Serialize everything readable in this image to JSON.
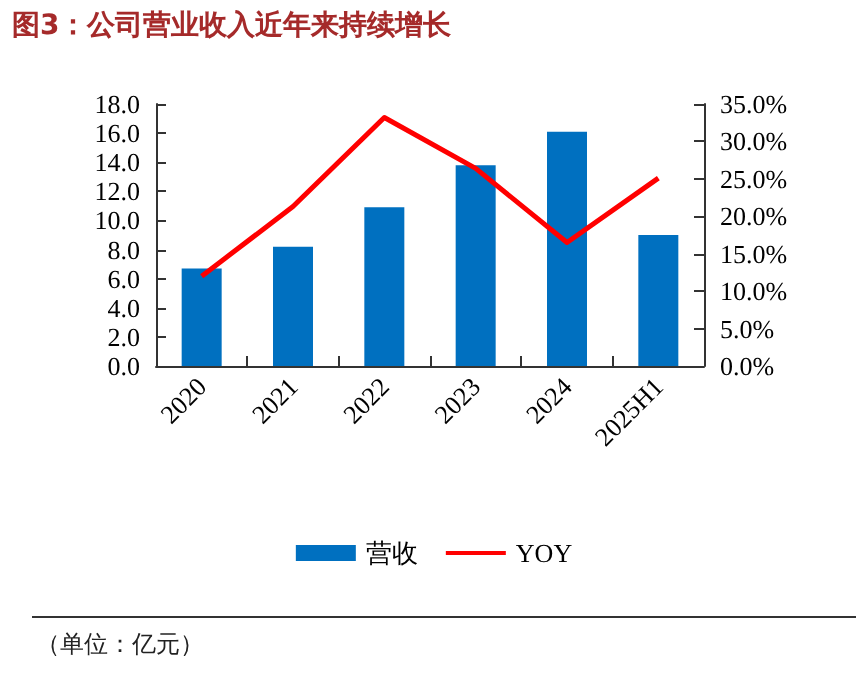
{
  "chart_data": {
    "type": "bar",
    "title": "图3：公司营业收入近年来持续增长",
    "categories": [
      "2020",
      "2021",
      "2022",
      "2023",
      "2024",
      "2025H1"
    ],
    "series": [
      {
        "name": "营收",
        "color": "#0070c0",
        "values": [
          6.7,
          8.2,
          10.9,
          13.8,
          16.1,
          9.0
        ]
      },
      {
        "name": "YOY",
        "type": "line",
        "axis": "y2",
        "color": "#ff0000",
        "values": [
          12.0,
          21.3,
          33.2,
          26.4,
          16.5,
          25.1
        ]
      }
    ],
    "ylim": [
      0,
      18
    ],
    "yticks": [
      {
        "value": 0,
        "label": "0.0"
      },
      {
        "value": 2,
        "label": "2.0"
      },
      {
        "value": 4,
        "label": "4.0"
      },
      {
        "value": 6,
        "label": "6.0"
      },
      {
        "value": 8,
        "label": "8.0"
      },
      {
        "value": 10,
        "label": "10.0"
      },
      {
        "value": 12,
        "label": "12.0"
      },
      {
        "value": 14,
        "label": "14.0"
      },
      {
        "value": 16,
        "label": "16.0"
      },
      {
        "value": 18,
        "label": "18.0"
      }
    ],
    "y2lim": [
      0,
      35
    ],
    "y2ticks": [
      {
        "value": 0,
        "label": "0.0%"
      },
      {
        "value": 5,
        "label": "5.0%"
      },
      {
        "value": 10,
        "label": "10.0%"
      },
      {
        "value": 15,
        "label": "15.0%"
      },
      {
        "value": 20,
        "label": "20.0%"
      },
      {
        "value": 25,
        "label": "25.0%"
      },
      {
        "value": 30,
        "label": "30.0%"
      },
      {
        "value": 35,
        "label": "35.0%"
      }
    ],
    "grid": false,
    "legend": "bottom",
    "marker": "none",
    "annotations": [
      "（单位：亿元）"
    ]
  }
}
